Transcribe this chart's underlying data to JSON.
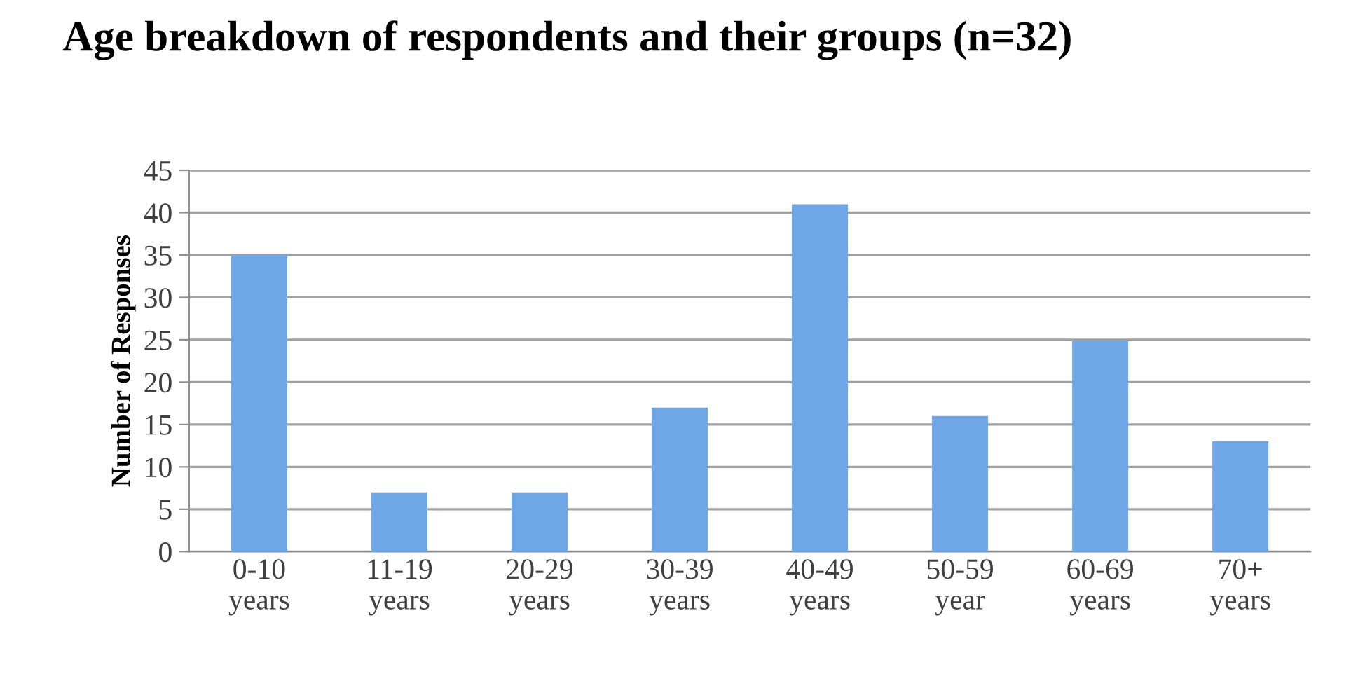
{
  "chart_data": {
    "type": "bar",
    "title": "Age breakdown of respondents and their groups (n=32)",
    "ylabel": "Number of Responses",
    "categories": [
      "0-10\nyears",
      "11-19\nyears",
      "20-29\nyears",
      "30-39\nyears",
      "40-49\nyears",
      "50-59\nyear",
      "60-69\nyears",
      "70+\nyears"
    ],
    "values": [
      35,
      7,
      7,
      17,
      41,
      16,
      25,
      13
    ],
    "color": "#6fa6e6",
    "ylim": [
      0,
      45
    ],
    "yticks": [
      0,
      5,
      10,
      15,
      20,
      25,
      30,
      35,
      40,
      45
    ],
    "grid": "y"
  }
}
